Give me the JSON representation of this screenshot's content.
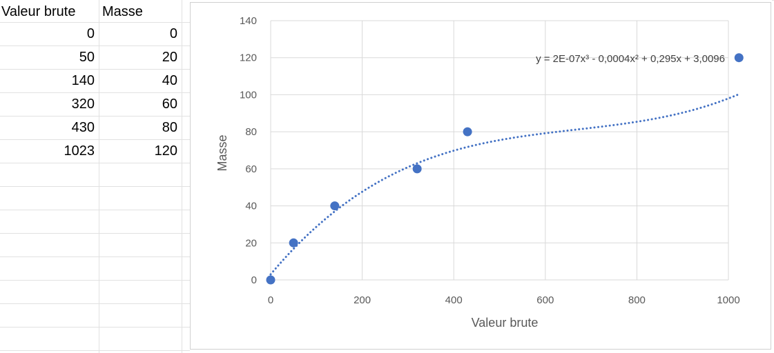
{
  "sheet": {
    "headers": [
      "Valeur brute",
      "Masse"
    ],
    "rows": [
      [
        "0",
        "0"
      ],
      [
        "50",
        "20"
      ],
      [
        "140",
        "40"
      ],
      [
        "320",
        "60"
      ],
      [
        "430",
        "80"
      ],
      [
        "1023",
        "120"
      ]
    ]
  },
  "chart_data": {
    "type": "scatter",
    "xlabel": "Valeur brute",
    "ylabel": "Masse",
    "xlim": [
      0,
      1000
    ],
    "ylim": [
      0,
      140
    ],
    "xticks": [
      0,
      200,
      400,
      600,
      800,
      1000
    ],
    "yticks": [
      0,
      20,
      40,
      60,
      80,
      100,
      120,
      140
    ],
    "grid": true,
    "series": [
      {
        "x": [
          0,
          50,
          140,
          320,
          430,
          1023
        ],
        "y": [
          0,
          20,
          40,
          60,
          80,
          120
        ],
        "color": "#4472C4"
      }
    ],
    "trendline": {
      "type": "polynomial-3",
      "equation": "y = 2E-07x³ - 0,0004x² + 0,295x + 3,0096",
      "coefficients": {
        "a3": 2e-07,
        "a2": -0.0004,
        "a1": 0.295,
        "a0": 3.0096
      },
      "style": "dotted",
      "color": "#4472C4"
    }
  }
}
